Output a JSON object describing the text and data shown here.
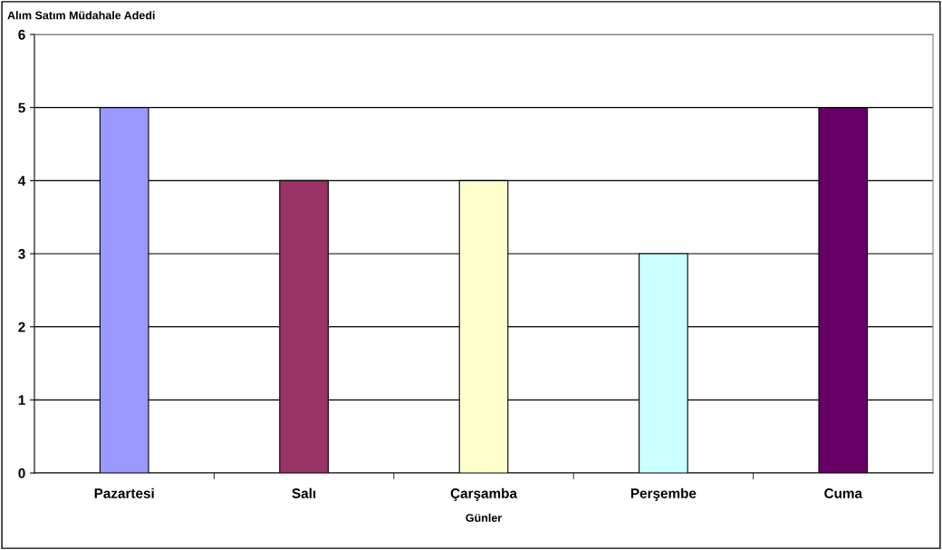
{
  "chart_data": {
    "type": "bar",
    "ylabel": "Alım Satım Müdahale Adedi",
    "xlabel": "Günler",
    "categories": [
      "Pazartesi",
      "Salı",
      "Çarşamba",
      "Perşembe",
      "Cuma"
    ],
    "values": [
      5,
      4,
      4,
      3,
      5
    ],
    "colors": [
      "#9999ff",
      "#993366",
      "#ffffcc",
      "#ccffff",
      "#660066"
    ],
    "ylim": [
      0,
      6
    ],
    "yticks": [
      0,
      1,
      2,
      3,
      4,
      5,
      6
    ],
    "grid": "y"
  }
}
